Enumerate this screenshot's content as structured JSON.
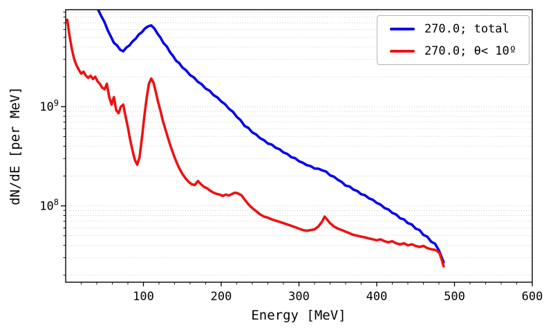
{
  "chart_data": {
    "type": "line",
    "title": "",
    "xlabel": "Energy [MeV]",
    "ylabel": "dN/dE [per MeV]",
    "xlim": [
      0,
      600
    ],
    "ylim": [
      17000000.0,
      9500000000.0
    ],
    "y_scale": "log",
    "grid": true,
    "legend_position": "upper right",
    "x_major_step": 100,
    "x_minor_step": 20,
    "x_ticks": [
      {
        "value": 100,
        "label": "100"
      },
      {
        "value": 200,
        "label": "200"
      },
      {
        "value": 300,
        "label": "300"
      },
      {
        "value": 400,
        "label": "400"
      },
      {
        "value": 500,
        "label": "500"
      },
      {
        "value": 600,
        "label": "600"
      }
    ],
    "y_ticks": [
      {
        "value": 100000000.0,
        "base": "10",
        "exponent": "8"
      },
      {
        "value": 1000000000.0,
        "base": "10",
        "exponent": "9"
      }
    ],
    "series": [
      {
        "name": "270.0; total",
        "color": "#0000ee",
        "linewidth": 3.6,
        "x": [
          42,
          46,
          50,
          54,
          58,
          62,
          66,
          70,
          74,
          78,
          82,
          86,
          90,
          94,
          98,
          102,
          106,
          110,
          114,
          118,
          122,
          126,
          130,
          134,
          138,
          142,
          146,
          150,
          155,
          160,
          165,
          170,
          175,
          180,
          185,
          190,
          195,
          200,
          205,
          210,
          215,
          220,
          225,
          230,
          235,
          240,
          245,
          250,
          255,
          260,
          265,
          270,
          275,
          280,
          285,
          290,
          295,
          300,
          305,
          310,
          315,
          320,
          325,
          330,
          335,
          340,
          345,
          350,
          355,
          360,
          365,
          370,
          375,
          380,
          385,
          390,
          395,
          400,
          405,
          410,
          415,
          420,
          425,
          430,
          435,
          440,
          445,
          450,
          455,
          460,
          465,
          470,
          475,
          480,
          483,
          486
        ],
        "y": [
          9400000000.0,
          8100000000.0,
          7100000000.0,
          5900000000.0,
          5100000000.0,
          4400000000.0,
          4150000000.0,
          3750000000.0,
          3620000000.0,
          3950000000.0,
          4150000000.0,
          4550000000.0,
          4850000000.0,
          5350000000.0,
          5650000000.0,
          6150000000.0,
          6450000000.0,
          6600000000.0,
          6150000000.0,
          5450000000.0,
          4950000000.0,
          4350000000.0,
          4050000000.0,
          3550000000.0,
          3250000000.0,
          2900000000.0,
          2750000000.0,
          2480000000.0,
          2320000000.0,
          2080000000.0,
          1970000000.0,
          1780000000.0,
          1680000000.0,
          1520000000.0,
          1450000000.0,
          1310000000.0,
          1240000000.0,
          1130000000.0,
          1060000000.0,
          950000000.0,
          890000000.0,
          790000000.0,
          730000000.0,
          640000000.0,
          610000000.0,
          550000000.0,
          525000000.0,
          480000000.0,
          460000000.0,
          425000000.0,
          415000000.0,
          385000000.0,
          372000000.0,
          346000000.0,
          334000000.0,
          310000000.0,
          303000000.0,
          282000000.0,
          272000000.0,
          257000000.0,
          252000000.0,
          238000000.0,
          237000000.0,
          228000000.0,
          221000000.0,
          203000000.0,
          197000000.0,
          183000000.0,
          174000000.0,
          160000000.0,
          157000000.0,
          146000000.0,
          141000000.0,
          131000000.0,
          128000000.0,
          119000000.0,
          115000000.0,
          107000000.0,
          103000000.0,
          95000000.0,
          92000000.0,
          85000000.0,
          82000000.0,
          75000000.0,
          73000000.0,
          67000000.0,
          65000000.0,
          59000000.0,
          57000000.0,
          51000000.0,
          49000000.0,
          43500000.0,
          41500000.0,
          35500000.0,
          31000000.0,
          27000000.0
        ]
      },
      {
        "name": "270.0; θ< 10º",
        "color": "#ee1111",
        "linewidth": 3.6,
        "x": [
          2,
          5,
          8,
          11,
          14,
          17,
          20,
          23,
          26,
          29,
          32,
          35,
          38,
          41,
          44,
          47,
          50,
          53,
          56,
          59,
          62,
          65,
          68,
          71,
          74,
          77,
          80,
          83,
          86,
          89,
          92,
          95,
          98,
          101,
          104,
          107,
          110,
          113,
          116,
          119,
          122,
          125,
          128,
          131,
          134,
          137,
          140,
          143,
          146,
          150,
          154,
          158,
          162,
          166,
          170,
          174,
          178,
          182,
          186,
          190,
          194,
          198,
          202,
          206,
          210,
          214,
          218,
          222,
          226,
          230,
          234,
          238,
          242,
          246,
          250,
          255,
          260,
          265,
          270,
          275,
          280,
          285,
          290,
          295,
          300,
          305,
          310,
          315,
          320,
          325,
          330,
          333,
          336,
          340,
          345,
          350,
          355,
          360,
          365,
          370,
          375,
          380,
          385,
          390,
          395,
          400,
          405,
          410,
          415,
          420,
          425,
          430,
          435,
          440,
          445,
          450,
          455,
          460,
          465,
          470,
          475,
          478,
          481,
          484,
          486
        ],
        "y": [
          7500000000.0,
          5200000000.0,
          3800000000.0,
          3000000000.0,
          2600000000.0,
          2350000000.0,
          2150000000.0,
          2250000000.0,
          2050000000.0,
          1950000000.0,
          2050000000.0,
          1900000000.0,
          2000000000.0,
          1800000000.0,
          1700000000.0,
          1550000000.0,
          1500000000.0,
          1700000000.0,
          1250000000.0,
          1050000000.0,
          1250000000.0,
          920000000.0,
          860000000.0,
          1000000000.0,
          1050000000.0,
          800000000.0,
          620000000.0,
          460000000.0,
          360000000.0,
          290000000.0,
          260000000.0,
          310000000.0,
          480000000.0,
          780000000.0,
          1200000000.0,
          1700000000.0,
          1920000000.0,
          1750000000.0,
          1400000000.0,
          1100000000.0,
          900000000.0,
          720000000.0,
          600000000.0,
          500000000.0,
          420000000.0,
          360000000.0,
          310000000.0,
          270000000.0,
          240000000.0,
          210000000.0,
          190000000.0,
          175000000.0,
          165000000.0,
          162000000.0,
          178000000.0,
          165000000.0,
          155000000.0,
          150000000.0,
          142000000.0,
          136000000.0,
          132000000.0,
          130000000.0,
          126000000.0,
          130000000.0,
          127000000.0,
          132000000.0,
          136000000.0,
          133000000.0,
          128000000.0,
          116000000.0,
          106000000.0,
          98000000.0,
          92000000.0,
          87000000.0,
          82000000.0,
          78000000.0,
          76000000.0,
          73000000.0,
          71000000.0,
          69000000.0,
          67000000.0,
          65000000.0,
          63000000.0,
          61000000.0,
          59000000.0,
          57000000.0,
          56000000.0,
          57000000.0,
          58000000.0,
          62000000.0,
          70000000.0,
          78000000.0,
          73000000.0,
          67000000.0,
          62000000.0,
          59000000.0,
          57000000.0,
          55000000.0,
          53000000.0,
          51000000.0,
          50000000.0,
          49000000.0,
          48000000.0,
          47000000.0,
          46000000.0,
          45000000.0,
          46000000.0,
          44000000.0,
          43000000.0,
          44000000.0,
          42000000.0,
          41000000.0,
          42000000.0,
          40000000.0,
          41000000.0,
          39500000.0,
          38500000.0,
          39500000.0,
          37500000.0,
          36500000.0,
          36000000.0,
          35000000.0,
          33000000.0,
          28000000.0,
          24500000.0
        ]
      }
    ]
  }
}
